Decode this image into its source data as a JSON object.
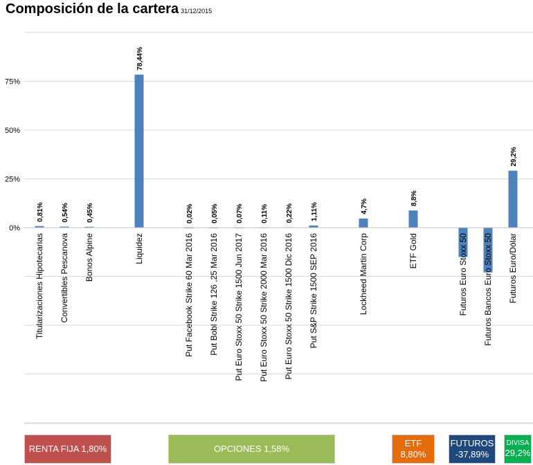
{
  "title": "Composición de la cartera",
  "date": "31/12/2015",
  "chart_data": {
    "type": "bar",
    "categories": [
      "Titularizaciones Hipotecarias",
      "Convertibles Pescanova",
      "Bonos Alpine",
      "Liquidez",
      "Put Facebook Strike 60 Mar 2016",
      "Put Bobl Strike 126 ,25 Mar 2016",
      "Put Euro Stoxx 50 Strike 1500 Jun 2017",
      "Put Euro Stoxx 50 Strike 2000 Mar 2016",
      "Put Euro Stoxx 50 Strike 1500 Dic 2016",
      "Put S&P Strike 1500 SEP 2016",
      "Lockheed Martin Corp",
      "ETF Gold",
      "Futuros Euro Stoxx 50",
      "Futuros Bancos Euro Stoxx 50",
      "Futuros Euro/Dólar"
    ],
    "values": [
      0.81,
      0.54,
      0.45,
      78.44,
      0.02,
      0.05,
      0.07,
      0.11,
      0.22,
      1.11,
      4.7,
      8.8,
      -15,
      -22.9,
      29.2
    ],
    "data_labels": [
      "0,81%",
      "0,54%",
      "0,45%",
      "78,44%",
      "0,02%",
      "0,05%",
      "0,07%",
      "0,11%",
      "0,22%",
      "1,11%",
      "4,7%",
      "8,8%",
      "",
      "",
      "29,2%"
    ],
    "y_ticks": [
      0,
      25,
      50,
      75
    ],
    "y_tick_labels": [
      "0%",
      "25%",
      "50%",
      "75%"
    ],
    "ylim": [
      -100,
      100
    ],
    "bar_color": "#4f81bd",
    "grid": true
  },
  "categories_boxes": [
    {
      "name": "renta",
      "line1": "RENTA FIJA 1,80%",
      "line2": "",
      "color": "#c0504d"
    },
    {
      "name": "opciones",
      "line1": "OPCIONES 1,58%",
      "line2": "",
      "color": "#9bbb59"
    },
    {
      "name": "etf",
      "line1": "ETF",
      "line2": "8,80%",
      "color": "#e46c0a"
    },
    {
      "name": "futuros",
      "line1": "FUTUROS",
      "line2": "-37,89%",
      "color": "#1f497d"
    },
    {
      "name": "divisa",
      "line1": "DIVISA",
      "line2": "29,2%",
      "color": "#00b050"
    }
  ]
}
